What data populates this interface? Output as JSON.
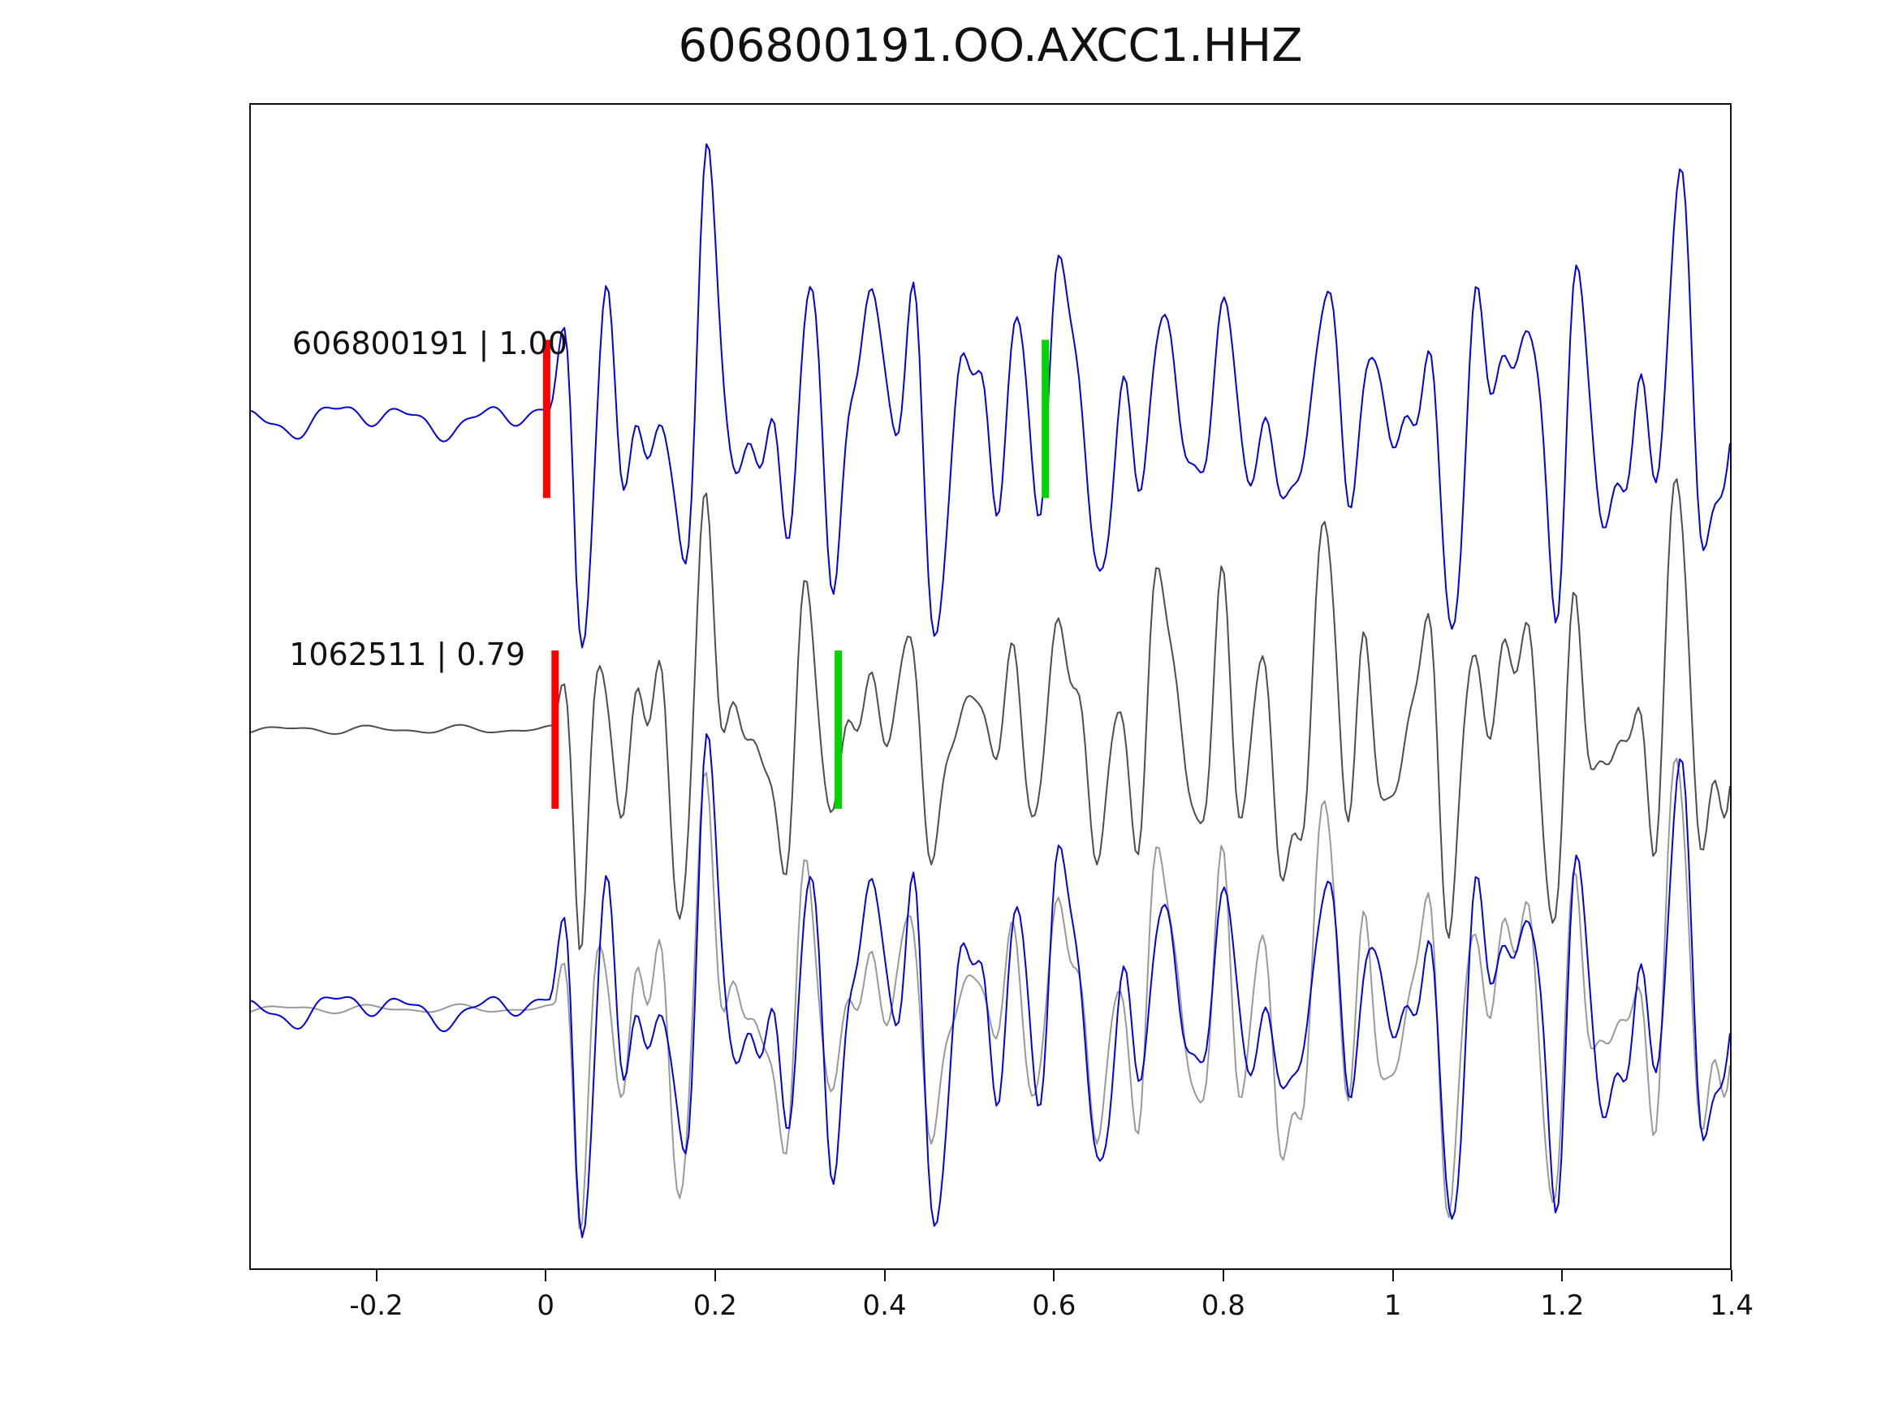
{
  "title": "606800191.OO.AXCC1.HHZ",
  "chart_data": {
    "type": "line",
    "title": "606800191.OO.AXCC1.HHZ",
    "subtitle": "",
    "xlabel": "",
    "ylabel": "",
    "grid": false,
    "legend": "none",
    "x_range": [
      -0.35,
      1.4
    ],
    "x_ticks": [
      {
        "value": -0.2,
        "label": "-0.2"
      },
      {
        "value": 0,
        "label": "0"
      },
      {
        "value": 0.2,
        "label": "0.2"
      },
      {
        "value": 0.4,
        "label": "0.4"
      },
      {
        "value": 0.6,
        "label": "0.6"
      },
      {
        "value": 0.8,
        "label": "0.8"
      },
      {
        "value": 1,
        "label": "1"
      },
      {
        "value": 1.2,
        "label": "1.2"
      },
      {
        "value": 1.4,
        "label": "1.4"
      }
    ],
    "sample_step": 0.0035,
    "rows": [
      0.27,
      0.537,
      0.777
    ],
    "pick_half_frac": 0.068,
    "pick_width": 9,
    "traces": [
      {
        "id": "template",
        "event_id": "606800191",
        "correlation": "1.00",
        "label": "606800191 | 1.00",
        "color": "#0000e0",
        "row": 0,
        "gain": 0.075,
        "noise": [
          {
            "f": 11.3,
            "a": 0.12,
            "p": 0.7
          },
          {
            "f": 5.1,
            "a": 0.09,
            "p": 2.3
          },
          {
            "f": 23.7,
            "a": 0.05,
            "p": 4.1
          }
        ],
        "signal": [
          {
            "f": 16.5,
            "a": 1.0,
            "p": 0.5
          },
          {
            "f": 9.7,
            "a": 0.75,
            "p": 2.1
          },
          {
            "f": 24.3,
            "a": 0.5,
            "p": 4.2
          },
          {
            "f": 5.3,
            "a": 0.45,
            "p": 1.2
          },
          {
            "f": 36.1,
            "a": 0.15,
            "p": 3.3
          }
        ],
        "env": {
          "onset": 0.005,
          "attack": 0.03,
          "mods": [
            {
              "f": 0.75,
              "a": 0.22,
              "p": 0.8
            },
            {
              "f": 1.7,
              "a": 0.15,
              "p": 2.0
            }
          ]
        },
        "picks": [
          {
            "t": 0.0,
            "color": "#ff0000",
            "kind": "pick-red"
          },
          {
            "t": 0.59,
            "color": "#00d400",
            "kind": "pick-green"
          }
        ]
      },
      {
        "id": "detection",
        "event_id": "1062511",
        "correlation": "0.79",
        "label": "1062511 | 0.79",
        "color": "#4d4d4d",
        "row": 1,
        "gain": 0.075,
        "noise": [
          {
            "f": 9.7,
            "a": 0.035,
            "p": 1.5
          },
          {
            "f": 17.3,
            "a": 0.02,
            "p": 0.2
          }
        ],
        "signal": [
          {
            "f": 16.5,
            "a": 0.95,
            "p": 1.0
          },
          {
            "f": 9.7,
            "a": 0.7,
            "p": 1.7
          },
          {
            "f": 24.3,
            "a": 0.55,
            "p": 5.0
          },
          {
            "f": 5.3,
            "a": 0.4,
            "p": 1.5
          },
          {
            "f": 36.1,
            "a": 0.18,
            "p": 2.5
          }
        ],
        "env": {
          "onset": 0.01,
          "attack": 0.03,
          "mods": [
            {
              "f": 0.8,
              "a": 0.2,
              "p": 2.1
            },
            {
              "f": 1.5,
              "a": 0.18,
              "p": 0.4
            }
          ]
        },
        "picks": [
          {
            "t": 0.01,
            "color": "#ff0000",
            "kind": "pick-red"
          },
          {
            "t": 0.345,
            "color": "#00d400",
            "kind": "pick-green"
          }
        ]
      }
    ],
    "overlay": {
      "row": 2,
      "detection_color": "#999999",
      "template_color": "#0000e0"
    }
  }
}
